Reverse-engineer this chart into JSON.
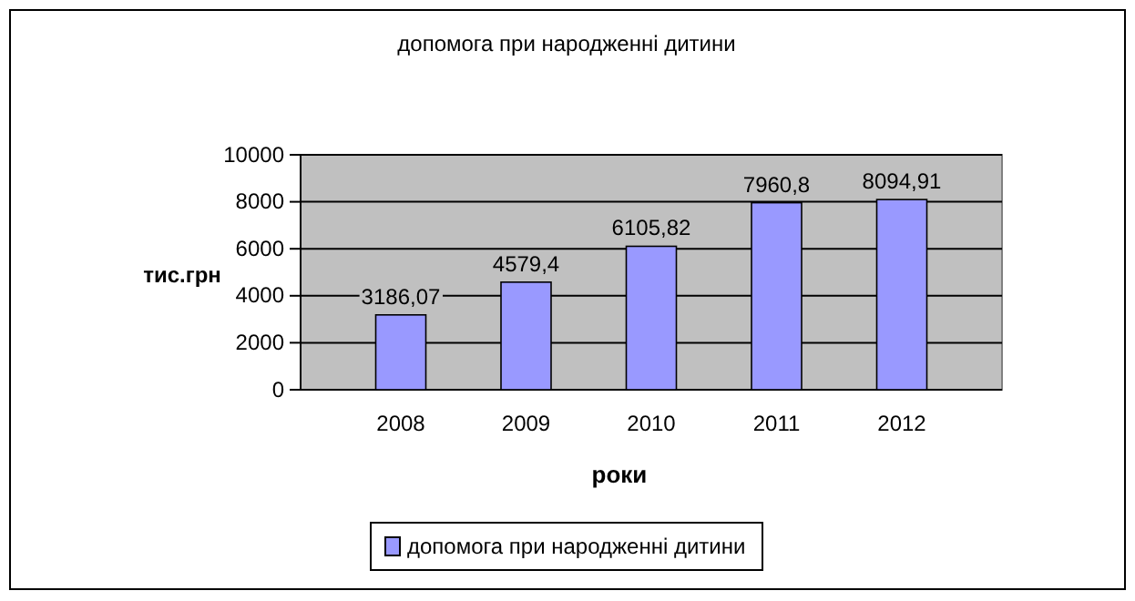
{
  "chart_data": {
    "type": "bar",
    "title": "допомога при народженні дитини",
    "xlabel": "роки",
    "ylabel": "тис.грн",
    "categories": [
      "2008",
      "2009",
      "2010",
      "2011",
      "2012"
    ],
    "series": [
      {
        "name": "допомога при народженні дитини",
        "color": "#9999ff",
        "values": [
          3186.07,
          4579.4,
          6105.82,
          7960.8,
          8094.91
        ],
        "value_labels": [
          "3186,07",
          "4579,4",
          "6105,82",
          "7960,8",
          "8094,91"
        ]
      }
    ],
    "ylim": [
      0,
      10000
    ],
    "yticks": [
      0,
      2000,
      4000,
      6000,
      8000,
      10000
    ],
    "grid": "y",
    "legend": "bottom"
  }
}
